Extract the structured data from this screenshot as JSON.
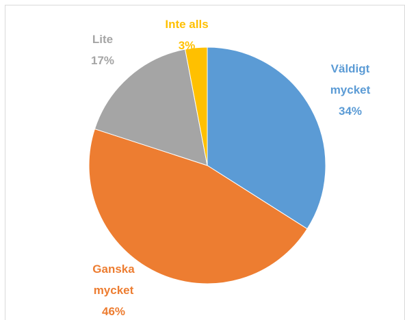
{
  "chart_data": {
    "type": "pie",
    "categories": [
      "Väldigt mycket",
      "Ganska mycket",
      "Lite",
      "Inte alls"
    ],
    "values": [
      34,
      46,
      17,
      3
    ],
    "value_labels": [
      "34%",
      "46%",
      "17%",
      "3%"
    ],
    "colors": [
      "#5b9bd5",
      "#ed7d31",
      "#a5a5a5",
      "#ffc000"
    ]
  }
}
